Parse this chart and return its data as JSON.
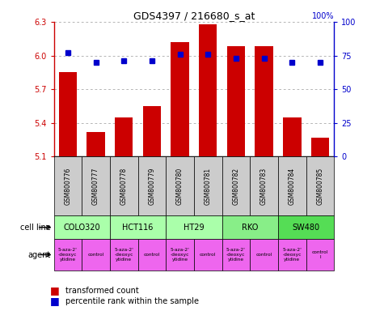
{
  "title": "GDS4397 / 216680_s_at",
  "samples": [
    "GSM800776",
    "GSM800777",
    "GSM800778",
    "GSM800779",
    "GSM800780",
    "GSM800781",
    "GSM800782",
    "GSM800783",
    "GSM800784",
    "GSM800785"
  ],
  "transformed_count": [
    5.85,
    5.32,
    5.45,
    5.55,
    6.12,
    6.28,
    6.08,
    6.08,
    5.45,
    5.27
  ],
  "percentile_rank": [
    77,
    70,
    71,
    71,
    76,
    76,
    73,
    73,
    70,
    70
  ],
  "ylim": [
    5.1,
    6.3
  ],
  "yticks": [
    5.1,
    5.4,
    5.7,
    6.0,
    6.3
  ],
  "right_yticks": [
    0,
    25,
    50,
    75,
    100
  ],
  "right_ylim": [
    0,
    100
  ],
  "cell_line_groups": [
    {
      "name": "COLO320",
      "start": 0,
      "end": 2,
      "color": "#aaffaa"
    },
    {
      "name": "HCT116",
      "start": 2,
      "end": 4,
      "color": "#aaffaa"
    },
    {
      "name": "HT29",
      "start": 4,
      "end": 6,
      "color": "#aaffaa"
    },
    {
      "name": "RKO",
      "start": 6,
      "end": 8,
      "color": "#88ee88"
    },
    {
      "name": "SW480",
      "start": 8,
      "end": 10,
      "color": "#55dd55"
    }
  ],
  "agent_groups": [
    {
      "name": "5-aza-2'\n-deoxyc\nytidine",
      "start": 0,
      "end": 1,
      "color": "#ee66ee"
    },
    {
      "name": "control",
      "start": 1,
      "end": 2,
      "color": "#ee66ee"
    },
    {
      "name": "5-aza-2'\n-deoxyc\nytidine",
      "start": 2,
      "end": 3,
      "color": "#ee66ee"
    },
    {
      "name": "control",
      "start": 3,
      "end": 4,
      "color": "#ee66ee"
    },
    {
      "name": "5-aza-2'\n-deoxyc\nytidine",
      "start": 4,
      "end": 5,
      "color": "#ee66ee"
    },
    {
      "name": "control",
      "start": 5,
      "end": 6,
      "color": "#ee66ee"
    },
    {
      "name": "5-aza-2'\n-deoxyc\nytidine",
      "start": 6,
      "end": 7,
      "color": "#ee66ee"
    },
    {
      "name": "control",
      "start": 7,
      "end": 8,
      "color": "#ee66ee"
    },
    {
      "name": "5-aza-2'\n-deoxyc\nytidine",
      "start": 8,
      "end": 9,
      "color": "#ee66ee"
    },
    {
      "name": "control\nl",
      "start": 9,
      "end": 10,
      "color": "#ee66ee"
    }
  ],
  "bar_color": "#cc0000",
  "dot_color": "#0000cc",
  "bar_width": 0.65,
  "sample_bg_color": "#cccccc",
  "legend_red_label": "transformed count",
  "legend_blue_label": "percentile rank within the sample",
  "cell_line_label": "cell line",
  "agent_label": "agent"
}
